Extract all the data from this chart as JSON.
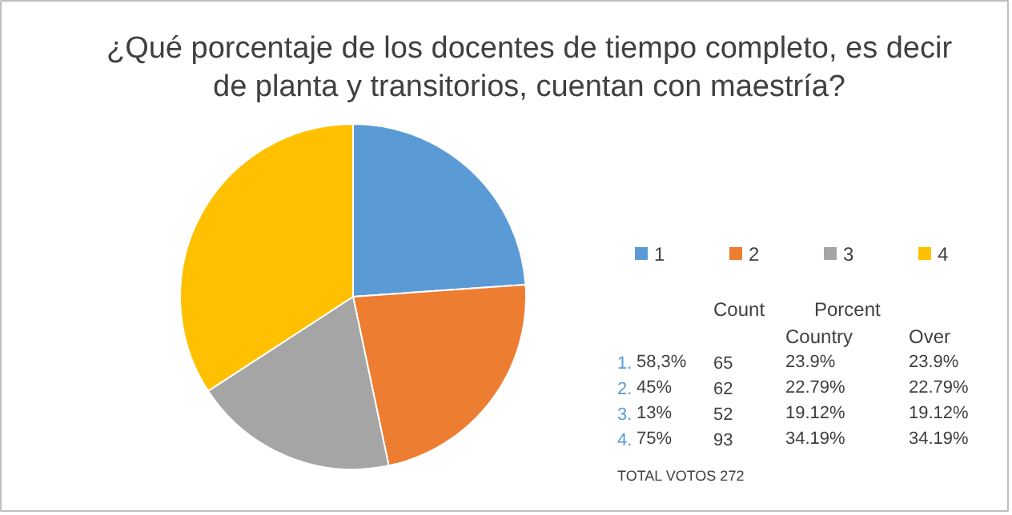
{
  "chart_data": {
    "type": "pie",
    "title": "¿Qué porcentaje de los docentes de tiempo completo, es decir de planta y transitorios, cuentan con maestría?",
    "categories": [
      "1",
      "2",
      "3",
      "4"
    ],
    "values": [
      23.9,
      22.79,
      19.12,
      34.19
    ],
    "colors": [
      "#5b9bd5",
      "#ed7d31",
      "#a5a5a5",
      "#ffc000"
    ],
    "legend": "right",
    "annotations": [
      "Count",
      "Porcent",
      "Country",
      "Over",
      "1.",
      "58,3%",
      "65",
      "23.9%",
      "23.9%",
      "2.",
      "45%",
      "62",
      "22.79%",
      "22.79%",
      "3.",
      "13%",
      "52",
      "19.12%",
      "19.12%",
      "4.",
      "75%",
      "93",
      "34.19%",
      "34.19%",
      "TOTAL VOTOS 272"
    ]
  }
}
